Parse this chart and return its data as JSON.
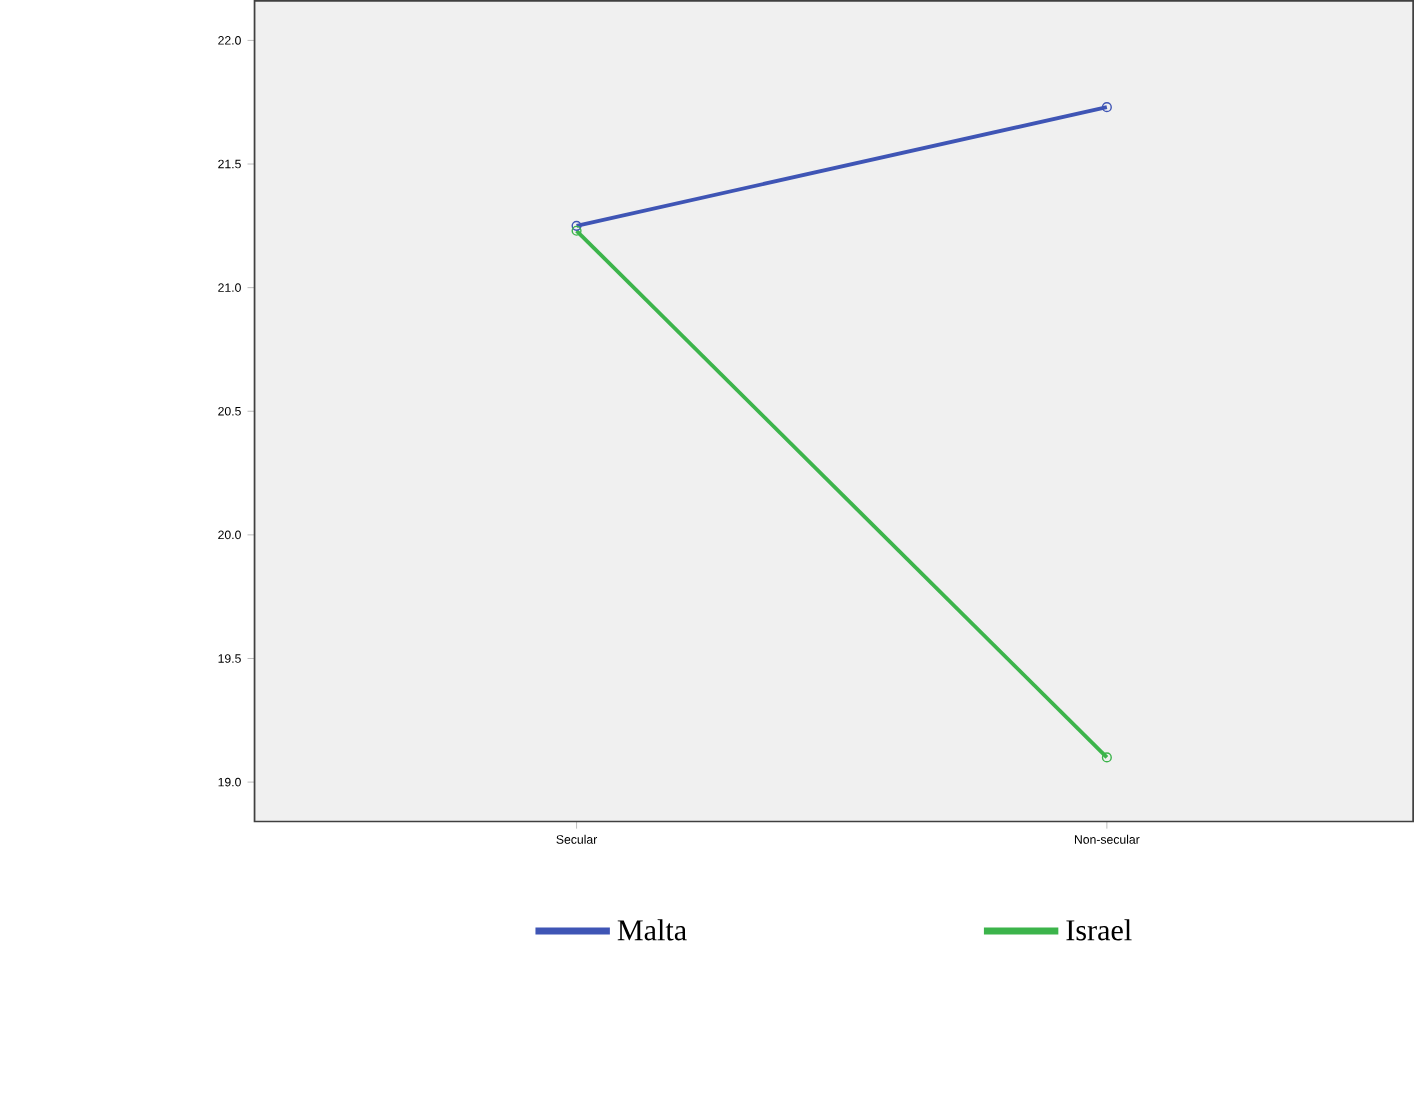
{
  "chart_data": {
    "type": "line",
    "categories": [
      "Secular",
      "Non-secular"
    ],
    "series": [
      {
        "name": "Malta",
        "color": "#3f55b5",
        "values": [
          21.25,
          21.73
        ]
      },
      {
        "name": "Israel",
        "color": "#3cb44b",
        "values": [
          21.23,
          19.1
        ]
      }
    ],
    "ylim": [
      18.84,
      22.16
    ],
    "yticks": [
      {
        "value": 19,
        "label": "19.0"
      },
      {
        "value": 19.5,
        "label": "19.5"
      },
      {
        "value": 20,
        "label": "20.0"
      },
      {
        "value": 20.5,
        "label": "20.5"
      },
      {
        "value": 21,
        "label": "21.0"
      },
      {
        "value": 21.5,
        "label": "21.5"
      },
      {
        "value": 22,
        "label": "22.0"
      }
    ],
    "marker": "circle",
    "line_style": "solid",
    "legend": "bottom",
    "grid": false
  }
}
